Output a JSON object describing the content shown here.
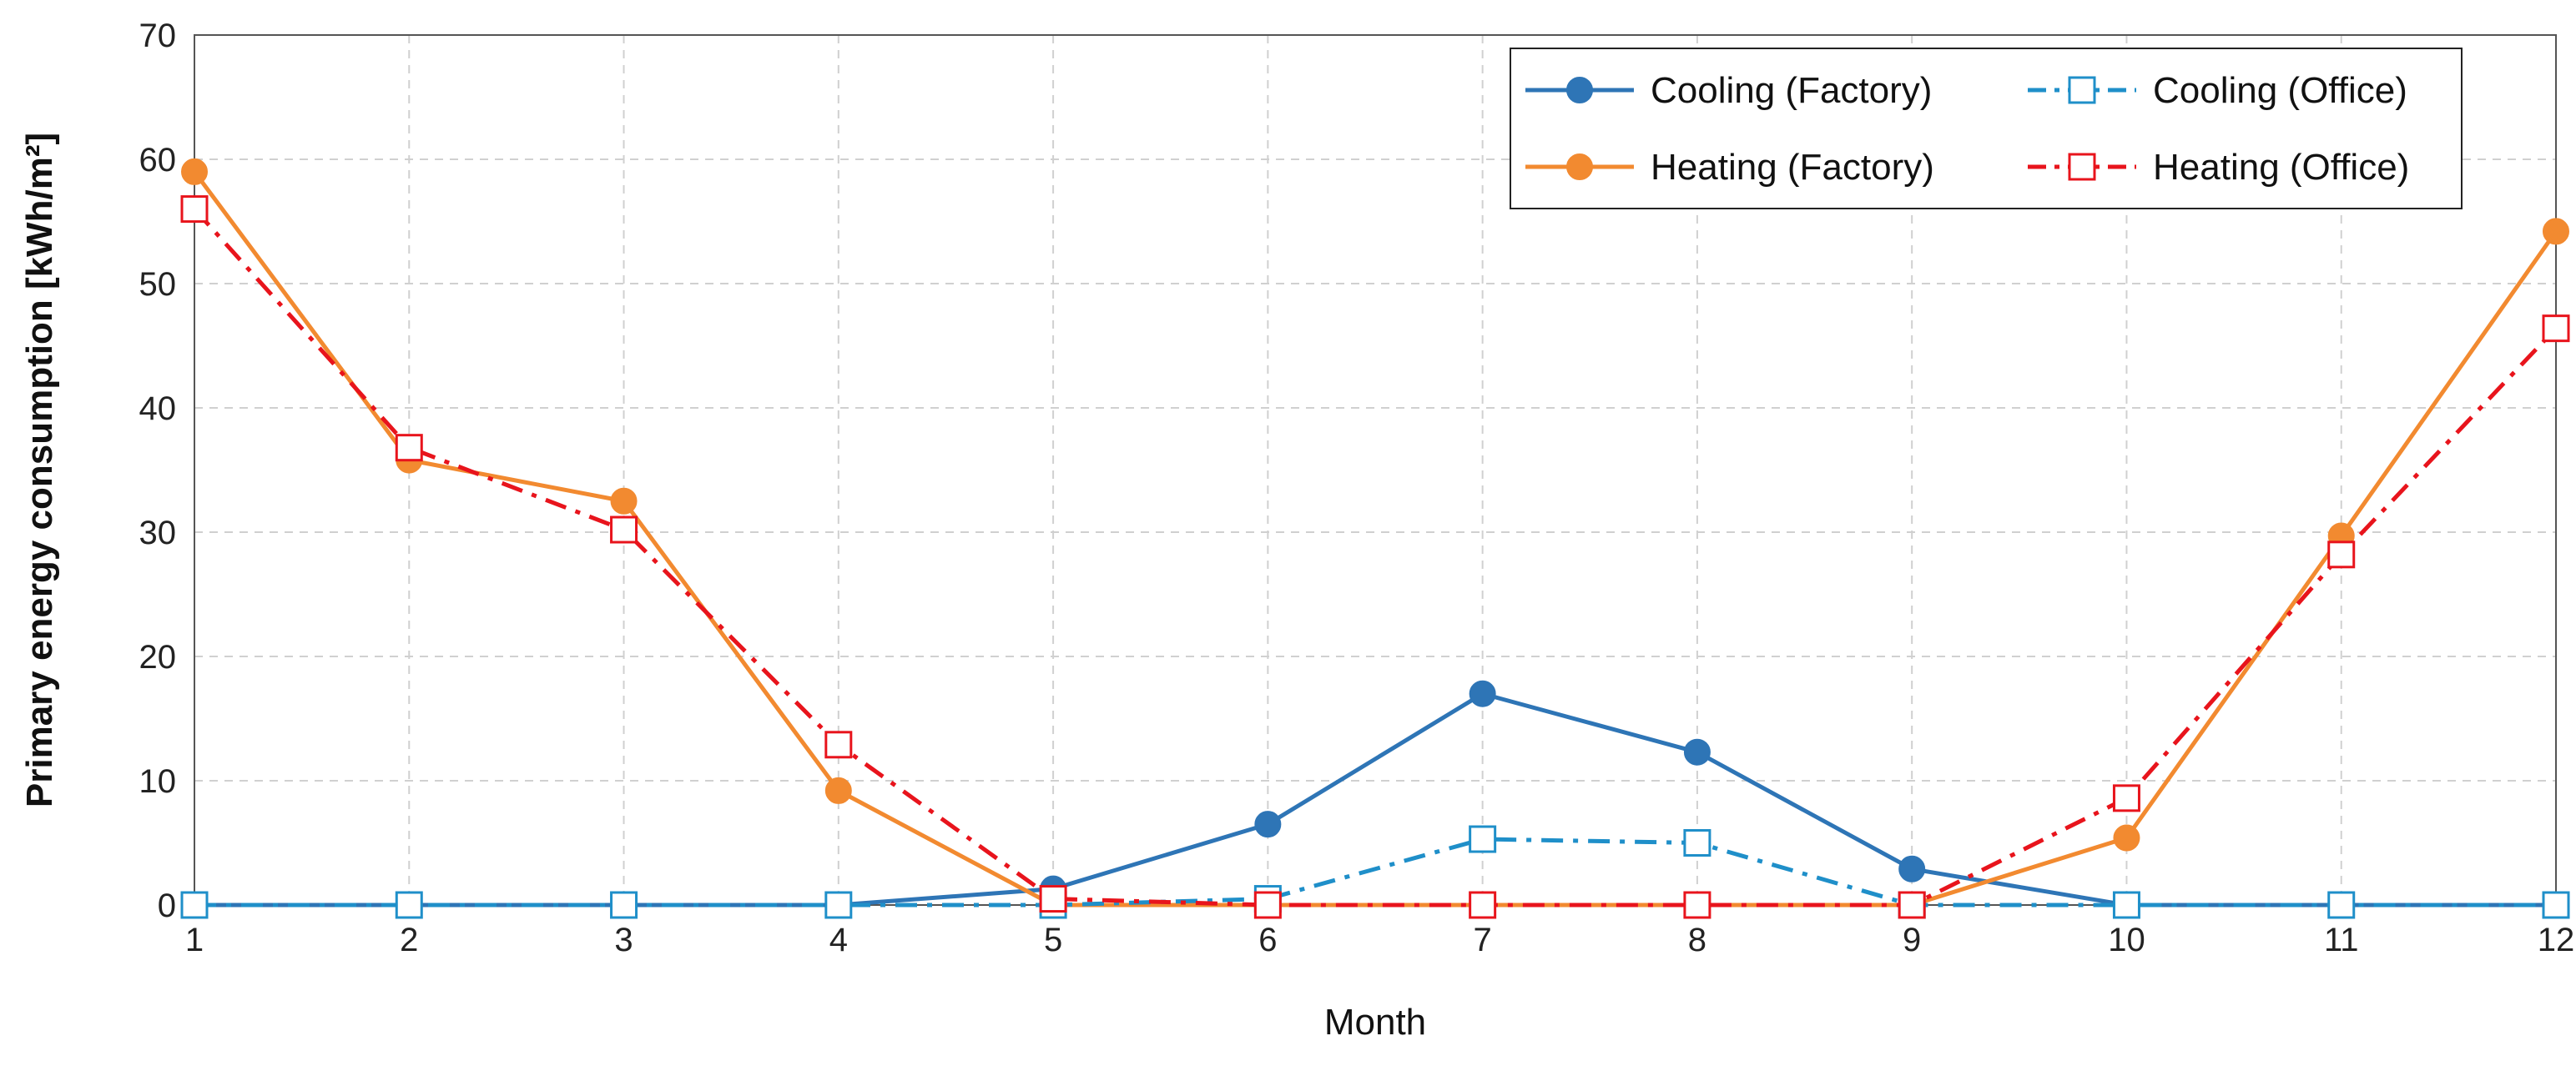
{
  "chart_data": {
    "type": "line",
    "title": "",
    "xlabel": "Month",
    "ylabel": "Primary energy consumption [kWh/m²]",
    "x": [
      1,
      2,
      3,
      4,
      5,
      6,
      7,
      8,
      9,
      10,
      11,
      12
    ],
    "xlim": [
      1,
      12
    ],
    "ylim": [
      0,
      70
    ],
    "yticks": [
      0,
      10,
      20,
      30,
      40,
      50,
      60,
      70
    ],
    "grid": true,
    "legend_position": "top-right",
    "series": [
      {
        "name": "Cooling (Factory)",
        "values": [
          0,
          0,
          0,
          0,
          1.3,
          6.5,
          17.0,
          12.3,
          2.9,
          0,
          0,
          0
        ],
        "color": "#2e75b6",
        "line": "solid",
        "marker": "filled-circle"
      },
      {
        "name": "Cooling (Office)",
        "values": [
          0,
          0,
          0,
          0,
          0,
          0.5,
          5.3,
          5.0,
          0,
          0,
          0,
          0
        ],
        "color": "#1f8fc9",
        "line": "dash-dot",
        "marker": "open-square"
      },
      {
        "name": "Heating (Factory)",
        "values": [
          59.0,
          35.8,
          32.5,
          9.2,
          0,
          0,
          0,
          0,
          0,
          5.4,
          29.7,
          54.2
        ],
        "color": "#f28a30",
        "line": "solid",
        "marker": "filled-circle"
      },
      {
        "name": "Heating (Office)",
        "values": [
          56.0,
          36.8,
          30.2,
          12.9,
          0.5,
          0,
          0,
          0,
          0,
          8.6,
          28.2,
          46.4
        ],
        "color": "#e8141c",
        "line": "dash-dot",
        "marker": "open-square"
      }
    ]
  }
}
